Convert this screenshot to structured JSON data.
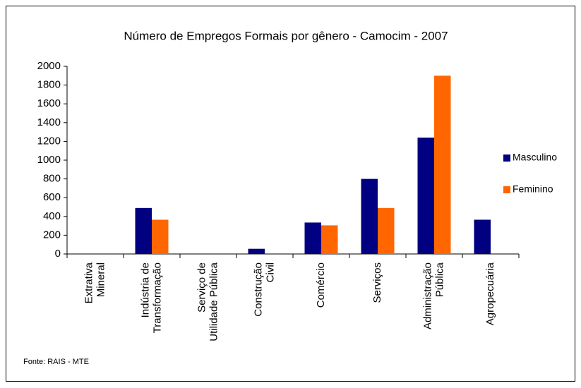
{
  "chart_data": {
    "type": "bar",
    "title": "Número de Empregos Formais por gênero - Camocim - 2007",
    "categories": [
      "Extrativa\nMineral",
      "Indústria de\nTransformação",
      "Serviço de\nUtilidade Pública",
      "Construção\nCivil",
      "Comércio",
      "Serviços",
      "Administração\nPública",
      "Agropecuária"
    ],
    "series": [
      {
        "name": "Masculino",
        "color": "#000080",
        "values": [
          0,
          490,
          0,
          55,
          335,
          800,
          1240,
          365
        ]
      },
      {
        "name": "Feminino",
        "color": "#ff6600",
        "values": [
          0,
          365,
          0,
          0,
          305,
          490,
          1900,
          0
        ]
      }
    ],
    "ylim": [
      0,
      2000
    ],
    "yticks": [
      0,
      200,
      400,
      600,
      800,
      1000,
      1200,
      1400,
      1600,
      1800,
      2000
    ],
    "legend": "right",
    "source": "Fonte: RAIS - MTE"
  }
}
